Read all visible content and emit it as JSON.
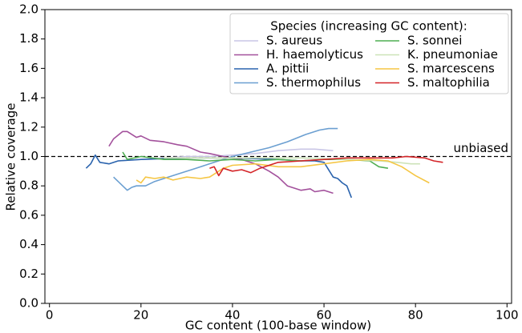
{
  "chart_data": {
    "type": "line",
    "xlabel": "GC content (100-base window)",
    "ylabel": "Relative coverage",
    "xlim": [
      -1,
      101
    ],
    "ylim": [
      0,
      2
    ],
    "xticks": [
      0,
      20,
      40,
      60,
      80,
      100
    ],
    "yticks": [
      {
        "value": 0,
        "label": "0.0"
      },
      0.2,
      0.4,
      0.6,
      0.8,
      {
        "value": 1,
        "label": "1.0"
      },
      1.2,
      1.4,
      1.6,
      1.8,
      {
        "value": 2,
        "label": "2.0"
      }
    ],
    "legend_title": "Species (increasing GC content):",
    "legend_position": "upper right",
    "reference_line": {
      "value": 1,
      "label": "unbiased"
    },
    "series": [
      {
        "name": "S. aureus",
        "color": "#c9c6e6",
        "x": [
          15,
          20,
          25,
          30,
          35,
          40,
          45,
          50,
          55,
          58,
          62
        ],
        "values": [
          0.97,
          0.98,
          0.99,
          1.0,
          1.0,
          1.01,
          1.02,
          1.04,
          1.05,
          1.05,
          1.04
        ]
      },
      {
        "name": "H. haemolyticus",
        "color": "#a3519c",
        "x": [
          13,
          14,
          16,
          17,
          19,
          20,
          22,
          25,
          28,
          30,
          33,
          35,
          38,
          42,
          45,
          48,
          50,
          52,
          55,
          57,
          58,
          60,
          62
        ],
        "values": [
          1.07,
          1.12,
          1.17,
          1.17,
          1.13,
          1.14,
          1.11,
          1.1,
          1.08,
          1.07,
          1.03,
          1.02,
          1.0,
          0.98,
          0.95,
          0.9,
          0.86,
          0.8,
          0.77,
          0.78,
          0.76,
          0.77,
          0.75
        ]
      },
      {
        "name": "A. pittii",
        "color": "#2a63ad",
        "x": [
          8,
          9,
          10,
          11,
          13,
          15,
          20,
          30,
          40,
          50,
          55,
          58,
          60,
          62,
          63,
          64,
          65,
          66
        ],
        "values": [
          0.92,
          0.95,
          1.01,
          0.96,
          0.95,
          0.97,
          0.98,
          0.99,
          0.99,
          0.98,
          0.97,
          0.97,
          0.96,
          0.86,
          0.85,
          0.82,
          0.8,
          0.72
        ]
      },
      {
        "name": "S. thermophilus",
        "color": "#6b9fd1",
        "x": [
          14,
          16,
          17,
          18,
          19,
          21,
          23,
          25,
          28,
          32,
          36,
          40,
          44,
          48,
          52,
          56,
          59,
          61,
          63
        ],
        "values": [
          0.86,
          0.8,
          0.77,
          0.79,
          0.8,
          0.8,
          0.83,
          0.85,
          0.88,
          0.92,
          0.96,
          1.0,
          1.03,
          1.06,
          1.1,
          1.15,
          1.18,
          1.19,
          1.19
        ]
      },
      {
        "name": "S. sonnei",
        "color": "#4fae52",
        "x": [
          16,
          17,
          20,
          25,
          30,
          35,
          40,
          45,
          50,
          55,
          60,
          65,
          70,
          72,
          74
        ],
        "values": [
          1.03,
          0.98,
          1.0,
          0.98,
          0.98,
          0.97,
          0.98,
          0.97,
          0.98,
          0.97,
          0.98,
          0.98,
          0.97,
          0.93,
          0.92
        ]
      },
      {
        "name": "K. pneumoniae",
        "color": "#cde3b8",
        "x": [
          25,
          35,
          45,
          55,
          65,
          72,
          76,
          79,
          81
        ],
        "values": [
          0.99,
          0.99,
          0.99,
          0.99,
          0.98,
          0.97,
          0.96,
          0.95,
          0.95
        ]
      },
      {
        "name": "S. marcescens",
        "color": "#f5c644",
        "x": [
          19,
          20,
          21,
          23,
          25,
          27,
          30,
          33,
          35,
          38,
          40,
          45,
          50,
          55,
          60,
          65,
          70,
          74,
          77,
          80,
          83
        ],
        "values": [
          0.84,
          0.82,
          0.86,
          0.85,
          0.86,
          0.84,
          0.86,
          0.85,
          0.86,
          0.92,
          0.94,
          0.95,
          0.93,
          0.93,
          0.95,
          0.97,
          0.98,
          0.97,
          0.93,
          0.87,
          0.82
        ]
      },
      {
        "name": "S. maltophilia",
        "color": "#d42428",
        "x": [
          35,
          36,
          37,
          38,
          40,
          42,
          44,
          46,
          48,
          50,
          55,
          60,
          65,
          70,
          75,
          78,
          82,
          84,
          86
        ],
        "values": [
          0.92,
          0.93,
          0.87,
          0.92,
          0.9,
          0.91,
          0.89,
          0.92,
          0.94,
          0.96,
          0.97,
          0.98,
          0.99,
          0.99,
          0.99,
          1.0,
          0.99,
          0.97,
          0.96
        ]
      }
    ]
  }
}
